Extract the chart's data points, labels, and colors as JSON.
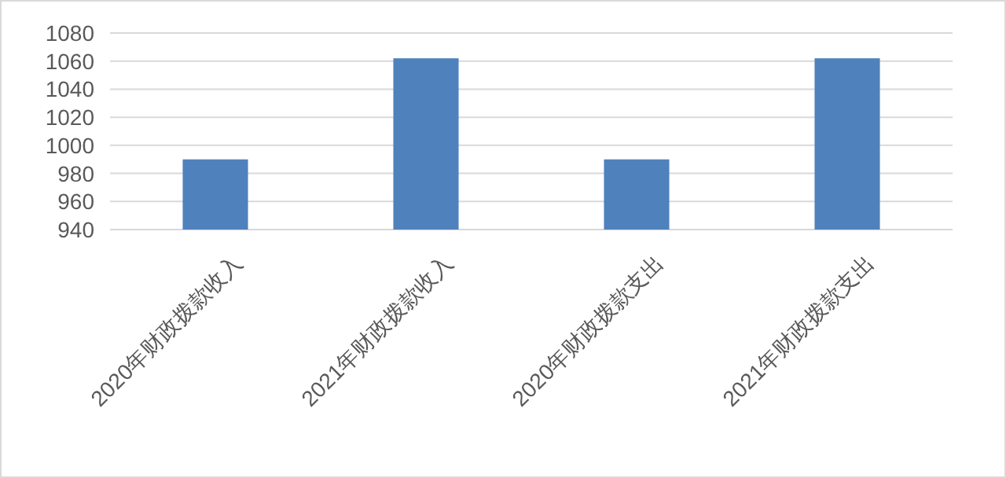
{
  "chart_data": {
    "type": "bar",
    "categories": [
      "2020年财政拨款收入",
      "2021年财政拨款收入",
      "2020年财政拨款支出",
      "2021年财政拨款支出"
    ],
    "values": [
      990,
      1062,
      990,
      1062
    ],
    "color": "#4f81bd",
    "ylim": [
      940,
      1080
    ],
    "yticks": [
      940,
      960,
      980,
      1000,
      1020,
      1040,
      1060,
      1080
    ],
    "grid": "y"
  }
}
